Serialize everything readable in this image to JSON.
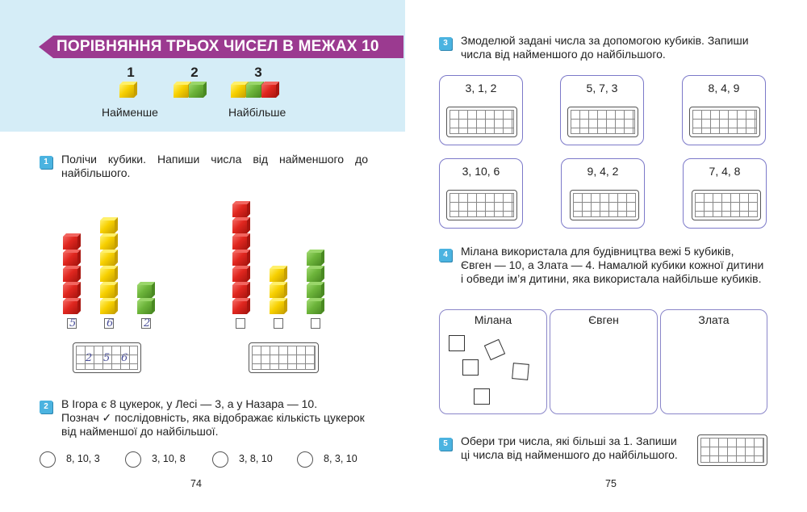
{
  "left_page": {
    "title": "ПОРІВНЯННЯ ТРЬОХ ЧИСЕЛ В МЕЖАХ 10",
    "intro": {
      "numbers": [
        "1",
        "2",
        "3"
      ],
      "label_least": "Найменше",
      "label_most": "Найбільше"
    },
    "task1": {
      "badge": "1",
      "text": "Полічи кубики. Напиши числа від найменшого до найбільшого.",
      "group1_counts": [
        5,
        6,
        2
      ],
      "group1_box_answers": [
        "5",
        "6",
        "2"
      ],
      "group1_grid_answers": [
        "2",
        "5",
        "6"
      ],
      "group2_counts": [
        7,
        3,
        4
      ]
    },
    "task2": {
      "badge": "2",
      "line1": "В Ігора є 8 цукерок, у Лесі — 3, а у Назара — 10.",
      "line2": "Познач ✓ послідовність, яка відображає кількість цукерок",
      "line3": "від найменшої до найбільшої.",
      "options": [
        "8, 10, 3",
        "3, 10, 8",
        "3, 8, 10",
        "8, 3, 10"
      ]
    },
    "page_number": "74"
  },
  "right_page": {
    "task3": {
      "badge": "3",
      "line1": "Змоделюй задані числа за допомогою кубиків. Запиши",
      "line2": "числа від найменшого до найбільшого.",
      "cards": [
        "3, 1, 2",
        "5, 7, 3",
        "8, 4, 9",
        "3, 10, 6",
        "9, 4, 2",
        "7, 4, 8"
      ]
    },
    "task4": {
      "badge": "4",
      "line1": "Мілана використала для будівництва вежі 5 кубиків,",
      "line2": "Євген — 10, а Злата — 4. Намалюй кубики кожної дитини",
      "line3": "і обведи ім’я дитини, яка використала найбільше кубиків.",
      "names": [
        "Мілана",
        "Євген",
        "Злата"
      ],
      "milana_squares_drawn": 5
    },
    "task5": {
      "badge": "5",
      "line1": "Обери три числа, які більші за 1. Запиши",
      "line2": "ці числа від найменшого до найбільшого."
    },
    "page_number": "75"
  },
  "colors": {
    "header_band": "#d5edf7",
    "title_banner": "#9b3a90",
    "badge": "#4bb3e0",
    "card_border": "#7c79c9",
    "cube_red": "#e0261f",
    "cube_yellow": "#f7d000",
    "cube_green": "#6cb43a"
  }
}
